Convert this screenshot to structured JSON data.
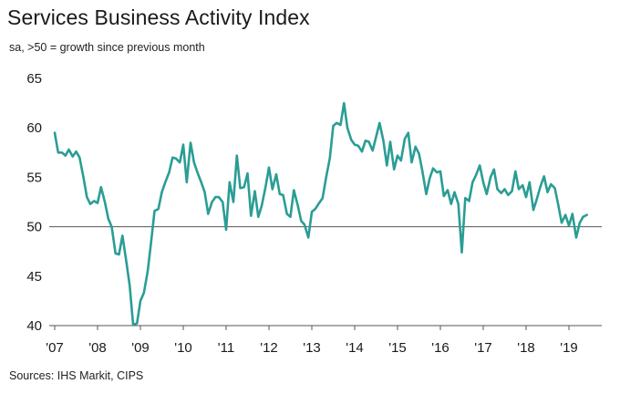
{
  "chart_data": {
    "type": "line",
    "title": "Services Business Activity Index",
    "subtitle": "sa, >50 = growth since previous month",
    "source": "Sources: IHS Markit, CIPS",
    "xlabel": "",
    "ylabel": "",
    "ylim": [
      40,
      65
    ],
    "yticks": [
      40,
      45,
      50,
      55,
      60,
      65
    ],
    "reference_line": 50,
    "xlim": [
      2007.0,
      2019.5
    ],
    "xticks": [
      {
        "label": "'07",
        "value": 2007.0
      },
      {
        "label": "'08",
        "value": 2008.0
      },
      {
        "label": "'09",
        "value": 2009.0
      },
      {
        "label": "'10",
        "value": 2010.0
      },
      {
        "label": "'11",
        "value": 2011.0
      },
      {
        "label": "'12",
        "value": 2012.0
      },
      {
        "label": "'13",
        "value": 2013.0
      },
      {
        "label": "'14",
        "value": 2014.0
      },
      {
        "label": "'15",
        "value": 2015.0
      },
      {
        "label": "'16",
        "value": 2016.0
      },
      {
        "label": "'17",
        "value": 2017.0
      },
      {
        "label": "'18",
        "value": 2018.0
      },
      {
        "label": "'19",
        "value": 2019.0
      }
    ],
    "series": [
      {
        "name": "Services Business Activity Index",
        "color": "#2a9d95",
        "points": [
          [
            2007.0,
            59.5
          ],
          [
            2007.08,
            57.5
          ],
          [
            2007.17,
            57.5
          ],
          [
            2007.25,
            57.2
          ],
          [
            2007.33,
            57.8
          ],
          [
            2007.42,
            57.1
          ],
          [
            2007.5,
            57.6
          ],
          [
            2007.58,
            57.0
          ],
          [
            2007.67,
            55.0
          ],
          [
            2007.75,
            53.0
          ],
          [
            2007.83,
            52.3
          ],
          [
            2007.92,
            52.6
          ],
          [
            2008.0,
            52.4
          ],
          [
            2008.08,
            54.0
          ],
          [
            2008.17,
            52.5
          ],
          [
            2008.25,
            50.8
          ],
          [
            2008.33,
            50.0
          ],
          [
            2008.42,
            47.3
          ],
          [
            2008.5,
            47.2
          ],
          [
            2008.58,
            49.1
          ],
          [
            2008.67,
            46.5
          ],
          [
            2008.75,
            44.0
          ],
          [
            2008.83,
            40.1
          ],
          [
            2008.92,
            40.2
          ],
          [
            2009.0,
            42.5
          ],
          [
            2009.08,
            43.3
          ],
          [
            2009.17,
            45.5
          ],
          [
            2009.25,
            48.5
          ],
          [
            2009.33,
            51.6
          ],
          [
            2009.42,
            51.8
          ],
          [
            2009.5,
            53.5
          ],
          [
            2009.58,
            54.5
          ],
          [
            2009.67,
            55.5
          ],
          [
            2009.75,
            57.0
          ],
          [
            2009.83,
            56.9
          ],
          [
            2009.92,
            56.5
          ],
          [
            2010.0,
            58.3
          ],
          [
            2010.08,
            54.5
          ],
          [
            2010.17,
            58.5
          ],
          [
            2010.25,
            56.5
          ],
          [
            2010.33,
            55.5
          ],
          [
            2010.42,
            54.5
          ],
          [
            2010.5,
            53.5
          ],
          [
            2010.58,
            51.3
          ],
          [
            2010.67,
            52.5
          ],
          [
            2010.75,
            53.0
          ],
          [
            2010.83,
            53.0
          ],
          [
            2010.92,
            52.5
          ],
          [
            2011.0,
            49.7
          ],
          [
            2011.08,
            54.5
          ],
          [
            2011.17,
            52.5
          ],
          [
            2011.25,
            57.2
          ],
          [
            2011.33,
            53.9
          ],
          [
            2011.42,
            54.0
          ],
          [
            2011.5,
            55.4
          ],
          [
            2011.58,
            51.1
          ],
          [
            2011.67,
            53.6
          ],
          [
            2011.75,
            51.0
          ],
          [
            2011.83,
            52.1
          ],
          [
            2011.92,
            54.0
          ],
          [
            2012.0,
            56.0
          ],
          [
            2012.08,
            53.8
          ],
          [
            2012.17,
            55.3
          ],
          [
            2012.25,
            53.3
          ],
          [
            2012.33,
            53.2
          ],
          [
            2012.42,
            51.3
          ],
          [
            2012.5,
            51.0
          ],
          [
            2012.58,
            53.7
          ],
          [
            2012.67,
            52.2
          ],
          [
            2012.75,
            50.6
          ],
          [
            2012.83,
            50.2
          ],
          [
            2012.92,
            48.9
          ],
          [
            2013.0,
            51.5
          ],
          [
            2013.08,
            51.8
          ],
          [
            2013.17,
            52.4
          ],
          [
            2013.25,
            52.9
          ],
          [
            2013.33,
            54.9
          ],
          [
            2013.42,
            56.9
          ],
          [
            2013.5,
            60.2
          ],
          [
            2013.58,
            60.5
          ],
          [
            2013.67,
            60.3
          ],
          [
            2013.75,
            62.5
          ],
          [
            2013.83,
            60.0
          ],
          [
            2013.92,
            58.8
          ],
          [
            2014.0,
            58.3
          ],
          [
            2014.08,
            58.2
          ],
          [
            2014.17,
            57.6
          ],
          [
            2014.25,
            58.7
          ],
          [
            2014.33,
            58.6
          ],
          [
            2014.42,
            57.7
          ],
          [
            2014.5,
            59.1
          ],
          [
            2014.58,
            60.5
          ],
          [
            2014.67,
            58.7
          ],
          [
            2014.75,
            56.2
          ],
          [
            2014.83,
            58.6
          ],
          [
            2014.92,
            55.8
          ],
          [
            2015.0,
            57.2
          ],
          [
            2015.08,
            56.7
          ],
          [
            2015.17,
            58.9
          ],
          [
            2015.25,
            59.5
          ],
          [
            2015.33,
            56.5
          ],
          [
            2015.42,
            58.1
          ],
          [
            2015.5,
            57.4
          ],
          [
            2015.58,
            55.6
          ],
          [
            2015.67,
            53.3
          ],
          [
            2015.75,
            54.9
          ],
          [
            2015.83,
            55.9
          ],
          [
            2015.92,
            55.5
          ],
          [
            2016.0,
            55.6
          ],
          [
            2016.08,
            53.1
          ],
          [
            2016.17,
            53.7
          ],
          [
            2016.25,
            52.3
          ],
          [
            2016.33,
            53.5
          ],
          [
            2016.42,
            52.3
          ],
          [
            2016.5,
            47.4
          ],
          [
            2016.58,
            52.9
          ],
          [
            2016.67,
            52.6
          ],
          [
            2016.75,
            54.5
          ],
          [
            2016.83,
            55.2
          ],
          [
            2016.92,
            56.2
          ],
          [
            2017.0,
            54.5
          ],
          [
            2017.08,
            53.3
          ],
          [
            2017.17,
            55.0
          ],
          [
            2017.25,
            55.8
          ],
          [
            2017.33,
            53.8
          ],
          [
            2017.42,
            53.4
          ],
          [
            2017.5,
            53.8
          ],
          [
            2017.58,
            53.2
          ],
          [
            2017.67,
            53.6
          ],
          [
            2017.75,
            55.6
          ],
          [
            2017.83,
            53.8
          ],
          [
            2017.92,
            54.2
          ],
          [
            2018.0,
            53.0
          ],
          [
            2018.08,
            54.5
          ],
          [
            2018.17,
            51.7
          ],
          [
            2018.25,
            52.8
          ],
          [
            2018.33,
            54.0
          ],
          [
            2018.42,
            55.1
          ],
          [
            2018.5,
            53.5
          ],
          [
            2018.58,
            54.3
          ],
          [
            2018.67,
            53.9
          ],
          [
            2018.75,
            52.2
          ],
          [
            2018.83,
            50.4
          ],
          [
            2018.92,
            51.2
          ],
          [
            2019.0,
            50.1
          ],
          [
            2019.08,
            51.3
          ],
          [
            2019.17,
            48.9
          ],
          [
            2019.25,
            50.4
          ],
          [
            2019.33,
            51.0
          ],
          [
            2019.42,
            51.2
          ]
        ]
      }
    ]
  }
}
